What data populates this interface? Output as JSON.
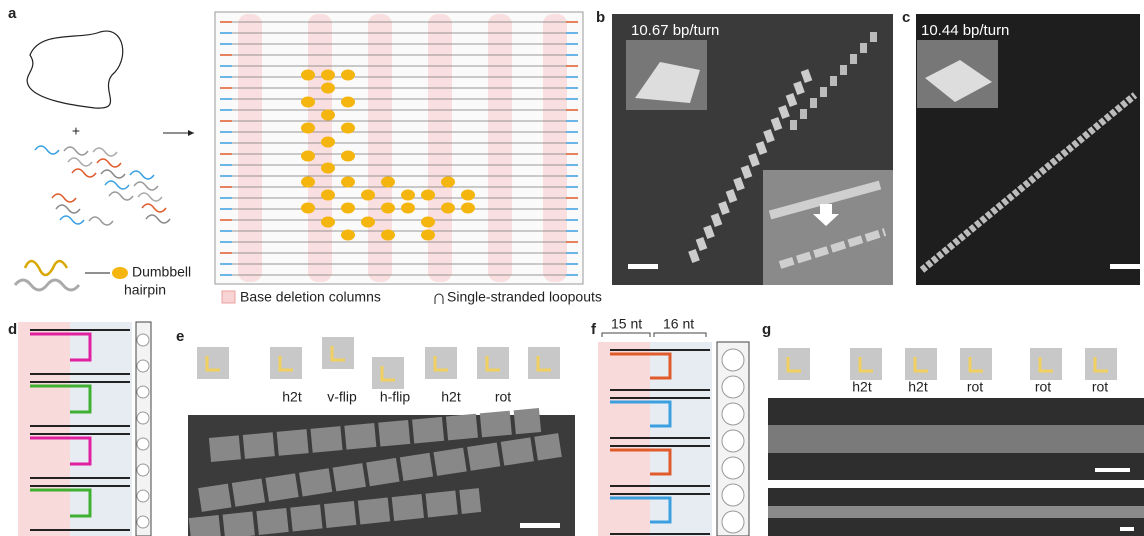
{
  "panel_a": {
    "label": "a",
    "plus": "+",
    "hairpin_label": [
      "Dumbbell",
      "hairpin"
    ],
    "legend": [
      "Base deletion columns",
      "Single-stranded loopouts"
    ]
  },
  "panel_b": {
    "label": "b",
    "inset": "10.67 bp/turn"
  },
  "panel_c": {
    "label": "c",
    "inset": "10.44 bp/turn"
  },
  "panel_d": {
    "label": "d"
  },
  "panel_e": {
    "label": "e",
    "transforms": [
      "h2t",
      "v-flip",
      "h-flip",
      "h2t",
      "rot"
    ]
  },
  "panel_f": {
    "label": "f",
    "segments": [
      "15 nt",
      "16 nt"
    ]
  },
  "panel_g": {
    "label": "g",
    "transforms": [
      "h2t",
      "h2t",
      "rot",
      "rot",
      "rot"
    ]
  }
}
